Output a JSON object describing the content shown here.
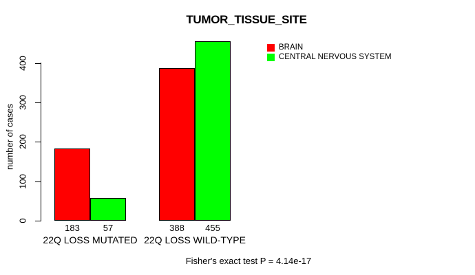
{
  "chart_data": {
    "type": "bar",
    "title": "TUMOR_TISSUE_SITE",
    "ylabel": "number of cases",
    "xlabel": "",
    "categories": [
      "22Q LOSS MUTATED",
      "22Q LOSS WILD-TYPE"
    ],
    "series": [
      {
        "name": "BRAIN",
        "color": "#ff0000",
        "values": [
          183,
          388
        ]
      },
      {
        "name": "CENTRAL NERVOUS SYSTEM",
        "color": "#00ff00",
        "values": [
          57,
          455
        ]
      }
    ],
    "bar_value_labels": [
      "183",
      "57",
      "388",
      "455"
    ],
    "ylim": [
      0,
      400
    ],
    "yticks": [
      0,
      100,
      200,
      300,
      400
    ],
    "grid": false,
    "legend_position": "top-right",
    "footnote": "Fisher's exact test P = 4.14e-17",
    "colors": {
      "background": "#ffffff",
      "axis": "#000000",
      "text": "#000000",
      "brain": "#ff0000",
      "central_nervous_system": "#00ff00"
    }
  }
}
